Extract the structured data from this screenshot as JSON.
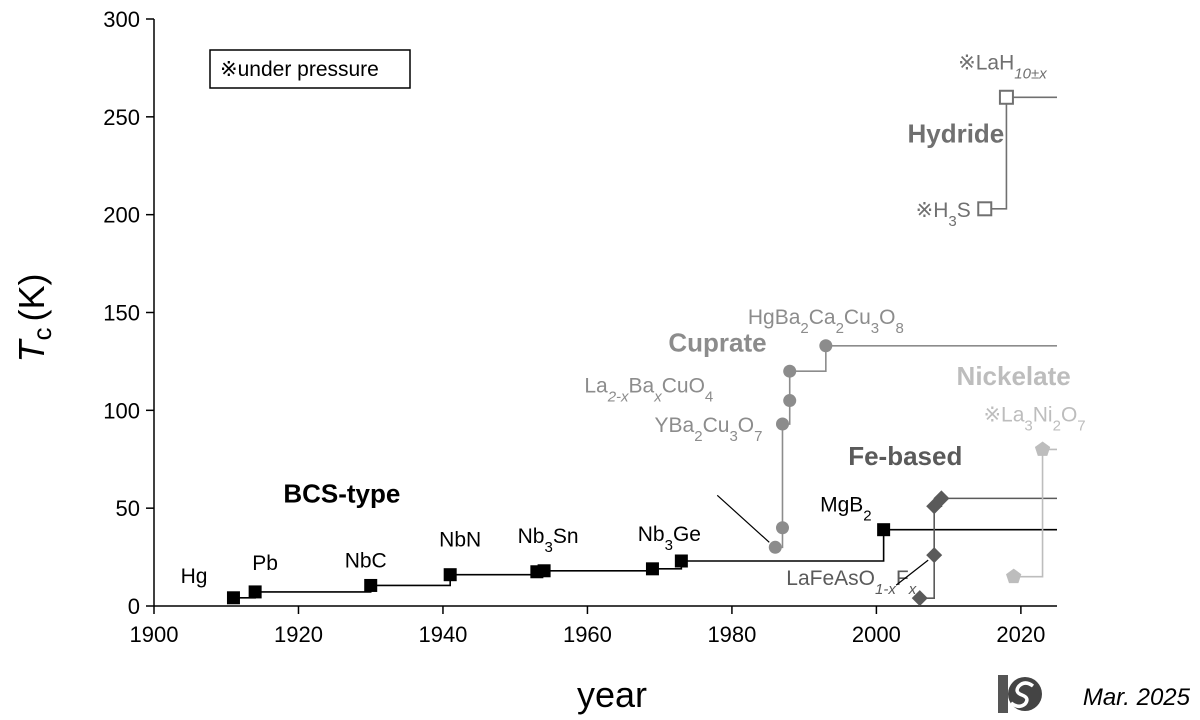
{
  "chart_data": {
    "type": "line",
    "xlabel": "year",
    "ylabel_main": "T",
    "ylabel_sub": "c",
    "ylabel_unit": "(K)",
    "xlim": [
      1900,
      2025
    ],
    "ylim": [
      0,
      300
    ],
    "x_ticks": [
      1900,
      1920,
      1940,
      1960,
      1980,
      2000,
      2020
    ],
    "y_ticks": [
      0,
      50,
      100,
      150,
      200,
      250,
      300
    ],
    "grid": false,
    "legend_note": "※under pressure",
    "footer": "Mar. 2025",
    "colors": {
      "BCS-type": "#000000",
      "Cuprate": "#8c8c8c",
      "Hydride": "#707070",
      "Fe-based": "#5a5a5a",
      "Nickelate": "#bdbdbd"
    },
    "series": [
      {
        "name": "BCS-type",
        "marker": "square",
        "points": [
          {
            "x": 1911,
            "y": 4.2,
            "label": "Hg"
          },
          {
            "x": 1914,
            "y": 7.2,
            "label": "Pb"
          },
          {
            "x": 1930,
            "y": 10.5,
            "label": "NbC"
          },
          {
            "x": 1941,
            "y": 16,
            "label": "NbN"
          },
          {
            "x": 1953,
            "y": 17.5,
            "label": ""
          },
          {
            "x": 1954,
            "y": 18,
            "label": "Nb3Sn"
          },
          {
            "x": 1969,
            "y": 19,
            "label": ""
          },
          {
            "x": 1973,
            "y": 23,
            "label": "Nb3Ge"
          },
          {
            "x": 2001,
            "y": 39,
            "label": "MgB2"
          }
        ]
      },
      {
        "name": "Cuprate",
        "marker": "circle",
        "points": [
          {
            "x": 1986,
            "y": 30,
            "label": "La2-xBaxCuO4"
          },
          {
            "x": 1987,
            "y": 40,
            "label": ""
          },
          {
            "x": 1987,
            "y": 93,
            "label": "YBa2Cu3O7"
          },
          {
            "x": 1988,
            "y": 105,
            "label": ""
          },
          {
            "x": 1988,
            "y": 120,
            "label": ""
          },
          {
            "x": 1993,
            "y": 133,
            "label": "HgBa2Ca2Cu3O8"
          }
        ]
      },
      {
        "name": "Fe-based",
        "marker": "diamond",
        "points": [
          {
            "x": 2006,
            "y": 4,
            "label": ""
          },
          {
            "x": 2008,
            "y": 26,
            "label": "LaFeAsO1-xFx"
          },
          {
            "x": 2008,
            "y": 51,
            "label": ""
          },
          {
            "x": 2009,
            "y": 55,
            "label": ""
          }
        ]
      },
      {
        "name": "Hydride",
        "marker": "open-square",
        "points": [
          {
            "x": 2015,
            "y": 203,
            "label": "※H3S"
          },
          {
            "x": 2018,
            "y": 260,
            "label": "※LaH10±x"
          }
        ]
      },
      {
        "name": "Nickelate",
        "marker": "pentagon",
        "points": [
          {
            "x": 2019,
            "y": 15,
            "label": ""
          },
          {
            "x": 2023,
            "y": 80,
            "label": "※La3Ni2O7"
          }
        ]
      }
    ]
  }
}
